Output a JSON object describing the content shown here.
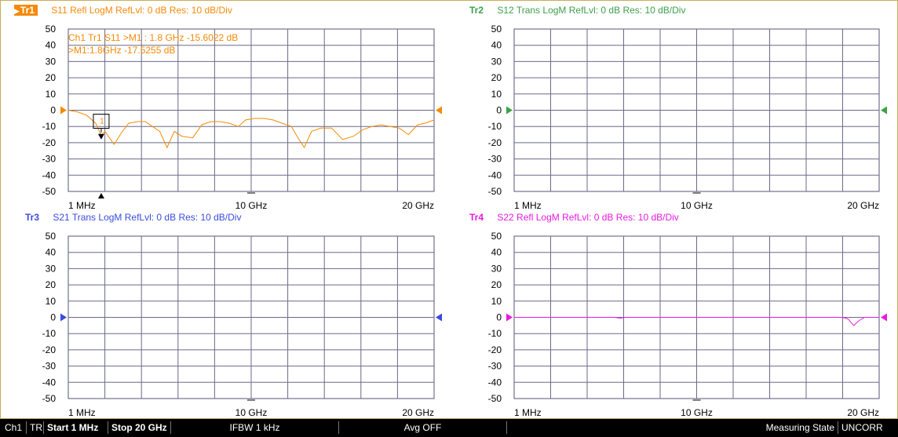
{
  "traces": [
    {
      "id": "tr1",
      "tag": "Tr1",
      "desc": "S11 Refl LogM RefLvl: 0  dB Res: 10  dB/Div",
      "color": "#f58a07",
      "active": true
    },
    {
      "id": "tr2",
      "tag": "Tr2",
      "desc": "S12 Trans LogM RefLvl: 0  dB Res: 10  dB/Div",
      "color": "#3ea04a",
      "active": false
    },
    {
      "id": "tr3",
      "tag": "Tr3",
      "desc": "S21 Trans LogM RefLvl: 0  dB Res: 10  dB/Div",
      "color": "#3b4be0",
      "active": false
    },
    {
      "id": "tr4",
      "tag": "Tr4",
      "desc": "S22 Refl LogM RefLvl: 0  dB Res: 10  dB/Div",
      "color": "#e81ae0",
      "active": false
    }
  ],
  "y_tick_labels": [
    "50",
    "40",
    "30",
    "20",
    "10",
    "0",
    "-10",
    "-20",
    "-30",
    "-40",
    "-50"
  ],
  "x_tick_labels": {
    "start": "1 MHz",
    "mid": "10 GHz",
    "end": "20 GHz"
  },
  "marker": {
    "label_line1": "Ch1 Tr1  S11 >M1  :  1.8 GHz -15.6022  dB",
    "label_line2": ">M1:1.8GHz  -17.5255  dB",
    "box_number": "1"
  },
  "status": {
    "channel": "Ch1",
    "mode": "TR",
    "start": "Start 1 MHz",
    "stop": "Stop 20 GHz",
    "ifbw": "IFBW 1 kHz",
    "avg": "Avg OFF",
    "meas_state": "Measuring State",
    "correction": "UNCORR"
  },
  "chart_data": [
    {
      "type": "line",
      "title": "S11 Refl LogM RefLvl: 0  dB Res: 10  dB/Div",
      "ylim": [
        -50,
        50
      ],
      "xlim": [
        0.001,
        20
      ],
      "x_unit": "GHz",
      "series": [
        {
          "name": "S11",
          "x": [
            0,
            0.5,
            1.0,
            1.5,
            1.8,
            2.0,
            2.5,
            2.9,
            3.3,
            3.8,
            4.2,
            4.6,
            5.0,
            5.4,
            5.8,
            6.2,
            6.8,
            7.3,
            7.8,
            8.3,
            8.8,
            9.3,
            9.7,
            10.2,
            10.7,
            11.2,
            11.7,
            12.2,
            12.5,
            12.9,
            13.3,
            13.8,
            14.4,
            15.0,
            15.6,
            16.1,
            16.6,
            17.1,
            17.6,
            18.1,
            18.6,
            19.1,
            19.5,
            20.0
          ],
          "y": [
            0,
            -1,
            -3,
            -8,
            -15.6,
            -13,
            -21,
            -14,
            -8,
            -7,
            -7,
            -10,
            -13,
            -23,
            -13,
            -16,
            -17,
            -9,
            -7,
            -7,
            -8,
            -10,
            -6,
            -5,
            -5,
            -6,
            -8,
            -10,
            -16,
            -23,
            -13,
            -11,
            -11,
            -18,
            -16,
            -12,
            -10,
            -9,
            -10,
            -11,
            -15,
            -9,
            -8,
            -6
          ]
        }
      ]
    },
    {
      "type": "line",
      "title": "S12 Trans LogM RefLvl: 0  dB Res: 10  dB/Div",
      "ylim": [
        -50,
        50
      ],
      "xlim": [
        0.001,
        20
      ],
      "x_unit": "GHz",
      "series": []
    },
    {
      "type": "line",
      "title": "S21 Trans LogM RefLvl: 0  dB Res: 10  dB/Div",
      "ylim": [
        -50,
        50
      ],
      "xlim": [
        0.001,
        20
      ],
      "x_unit": "GHz",
      "series": []
    },
    {
      "type": "line",
      "title": "S22 Refl LogM RefLvl: 0  dB Res: 10  dB/Div",
      "ylim": [
        -50,
        50
      ],
      "xlim": [
        0.001,
        20
      ],
      "x_unit": "GHz",
      "series": [
        {
          "name": "S22",
          "x": [
            0,
            5.0,
            5.5,
            5.8,
            6.1,
            8.0,
            14.0,
            17.0,
            18.0,
            18.3,
            18.6,
            18.9,
            19.2,
            19.5,
            20.0
          ],
          "y": [
            0,
            0,
            0,
            -0.5,
            0,
            0,
            0,
            0,
            0,
            -1,
            -5,
            -2,
            0,
            0,
            0
          ]
        }
      ]
    }
  ]
}
